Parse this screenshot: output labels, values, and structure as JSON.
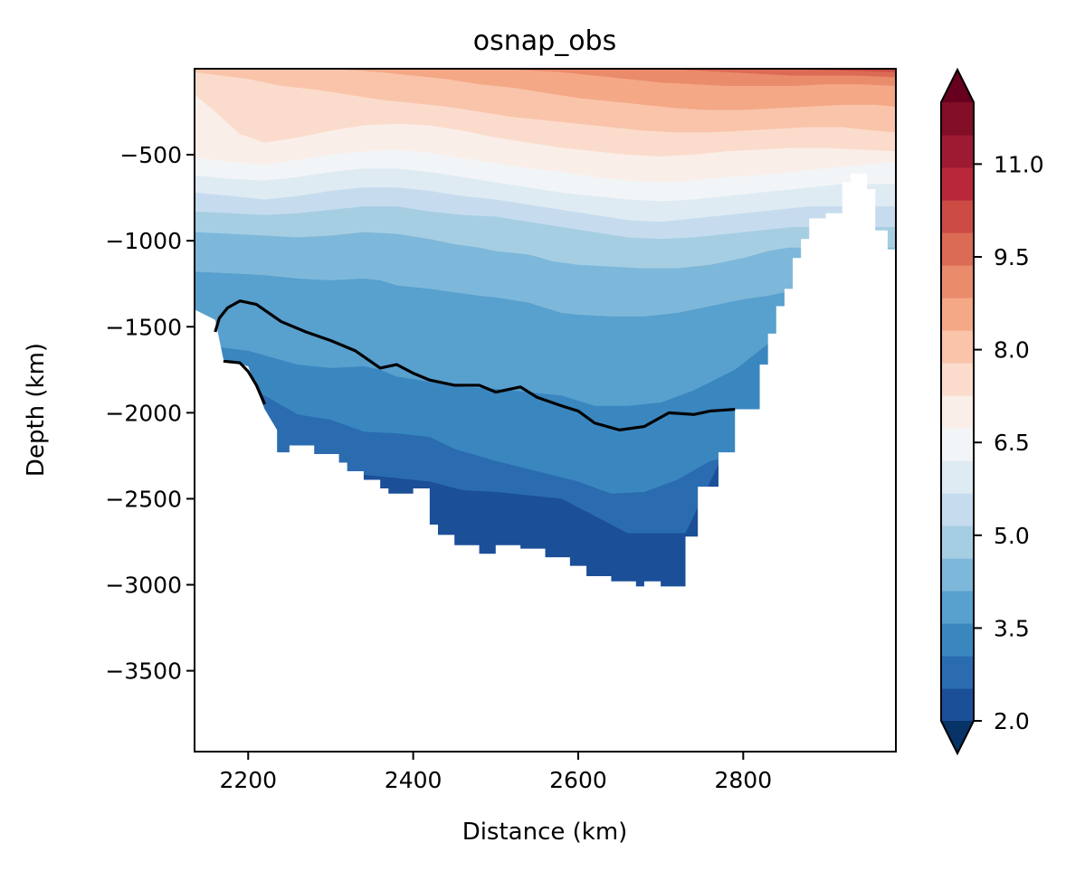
{
  "chart_data": {
    "type": "contourf",
    "title": "osnap_obs",
    "xlabel": "Distance (km)",
    "ylabel": "Depth (km)",
    "xlim": [
      2135,
      2985
    ],
    "ylim": [
      -3970,
      0
    ],
    "xticks": [
      2200,
      2400,
      2600,
      2800
    ],
    "xtick_labels": [
      "2200",
      "2400",
      "2600",
      "2800"
    ],
    "yticks": [
      -500,
      -1000,
      -1500,
      -2000,
      -2500,
      -3000,
      -3500
    ],
    "ytick_labels": [
      "−500",
      "−1000",
      "−1500",
      "−2000",
      "−2500",
      "−3000",
      "−3500"
    ],
    "colorbar": {
      "extend": "both",
      "min": 2.0,
      "max": 12.0,
      "ticks": [
        2.0,
        3.5,
        5.0,
        6.5,
        8.0,
        9.5,
        11.0
      ],
      "tick_labels": [
        "2.0",
        "3.5",
        "5.0",
        "6.5",
        "8.0",
        "9.5",
        "11.0"
      ],
      "colors": [
        "#1b4f98",
        "#2b6cb0",
        "#3a87c0",
        "#58a0ce",
        "#7db8da",
        "#a6cee3",
        "#c6dcee",
        "#dfebf3",
        "#f2f5f7",
        "#faeee9",
        "#fbdccc",
        "#f9c4aa",
        "#f4a886",
        "#ea8b6b",
        "#dc6b55",
        "#cc4b45",
        "#b8283a",
        "#9d1a32",
        "#810d27"
      ],
      "under_color": "#073366",
      "over_color": "#67001f"
    },
    "contour_line": {
      "color": "#000000",
      "points": [
        [
          2160,
          -1530
        ],
        [
          2165,
          -1450
        ],
        [
          2175,
          -1390
        ],
        [
          2190,
          -1350
        ],
        [
          2210,
          -1370
        ],
        [
          2240,
          -1470
        ],
        [
          2270,
          -1530
        ],
        [
          2300,
          -1580
        ],
        [
          2330,
          -1640
        ],
        [
          2360,
          -1740
        ],
        [
          2380,
          -1720
        ],
        [
          2400,
          -1770
        ],
        [
          2420,
          -1810
        ],
        [
          2450,
          -1840
        ],
        [
          2480,
          -1840
        ],
        [
          2500,
          -1880
        ],
        [
          2530,
          -1850
        ],
        [
          2550,
          -1910
        ],
        [
          2580,
          -1960
        ],
        [
          2600,
          -1990
        ],
        [
          2620,
          -2060
        ],
        [
          2650,
          -2100
        ],
        [
          2680,
          -2080
        ],
        [
          2710,
          -2000
        ],
        [
          2740,
          -2010
        ],
        [
          2760,
          -1990
        ],
        [
          2790,
          -1980
        ]
      ],
      "lower_branch": [
        [
          2170,
          -1700
        ],
        [
          2190,
          -1710
        ],
        [
          2200,
          -1760
        ],
        [
          2210,
          -1840
        ],
        [
          2220,
          -1950
        ]
      ]
    },
    "bathymetry_floor": [
      [
        2135,
        -1400
      ],
      [
        2160,
        -1460
      ],
      [
        2170,
        -1690
      ],
      [
        2200,
        -1730
      ],
      [
        2220,
        -1980
      ],
      [
        2235,
        -2100
      ],
      [
        2235,
        -2230
      ],
      [
        2250,
        -2230
      ],
      [
        2250,
        -2190
      ],
      [
        2280,
        -2190
      ],
      [
        2280,
        -2240
      ],
      [
        2310,
        -2240
      ],
      [
        2310,
        -2290
      ],
      [
        2320,
        -2290
      ],
      [
        2320,
        -2340
      ],
      [
        2340,
        -2340
      ],
      [
        2340,
        -2390
      ],
      [
        2360,
        -2390
      ],
      [
        2360,
        -2440
      ],
      [
        2370,
        -2440
      ],
      [
        2370,
        -2470
      ],
      [
        2400,
        -2470
      ],
      [
        2400,
        -2440
      ],
      [
        2420,
        -2440
      ],
      [
        2420,
        -2650
      ],
      [
        2430,
        -2650
      ],
      [
        2430,
        -2710
      ],
      [
        2450,
        -2710
      ],
      [
        2450,
        -2770
      ],
      [
        2480,
        -2770
      ],
      [
        2480,
        -2820
      ],
      [
        2500,
        -2820
      ],
      [
        2500,
        -2770
      ],
      [
        2530,
        -2770
      ],
      [
        2530,
        -2790
      ],
      [
        2560,
        -2790
      ],
      [
        2560,
        -2840
      ],
      [
        2590,
        -2840
      ],
      [
        2590,
        -2890
      ],
      [
        2610,
        -2890
      ],
      [
        2610,
        -2950
      ],
      [
        2640,
        -2950
      ],
      [
        2640,
        -2980
      ],
      [
        2670,
        -2980
      ],
      [
        2670,
        -3010
      ],
      [
        2680,
        -3010
      ],
      [
        2680,
        -2980
      ],
      [
        2700,
        -2980
      ],
      [
        2700,
        -3010
      ],
      [
        2730,
        -3010
      ],
      [
        2730,
        -2720
      ],
      [
        2745,
        -2720
      ],
      [
        2745,
        -2430
      ],
      [
        2770,
        -2430
      ],
      [
        2770,
        -2230
      ],
      [
        2790,
        -2230
      ],
      [
        2790,
        -1980
      ],
      [
        2820,
        -1980
      ],
      [
        2820,
        -1720
      ],
      [
        2830,
        -1720
      ],
      [
        2830,
        -1540
      ],
      [
        2840,
        -1540
      ],
      [
        2840,
        -1380
      ],
      [
        2850,
        -1380
      ],
      [
        2850,
        -1280
      ],
      [
        2860,
        -1280
      ],
      [
        2860,
        -1100
      ],
      [
        2870,
        -1100
      ],
      [
        2870,
        -990
      ],
      [
        2880,
        -990
      ],
      [
        2880,
        -870
      ],
      [
        2900,
        -870
      ],
      [
        2900,
        -840
      ],
      [
        2920,
        -840
      ],
      [
        2920,
        -660
      ],
      [
        2930,
        -660
      ],
      [
        2930,
        -610
      ],
      [
        2950,
        -610
      ],
      [
        2950,
        -700
      ],
      [
        2960,
        -700
      ],
      [
        2960,
        -940
      ],
      [
        2975,
        -940
      ],
      [
        2975,
        -1050
      ],
      [
        2985,
        -1050
      ]
    ],
    "band_lower_edges": [
      {
        "xs": [
          2135,
          2160,
          2200,
          2270,
          2300,
          2340,
          2380,
          2420,
          2460,
          2500,
          2540,
          2580,
          2620,
          2660,
          2700,
          2730,
          2750,
          2770,
          2790
        ],
        "ys": [
          -2200,
          -2250,
          -2280,
          -2300,
          -2350,
          -2360,
          -2380,
          -2400,
          -2450,
          -2460,
          -2480,
          -2500,
          -2600,
          -2700,
          -2700,
          -2700,
          -2500,
          -2300,
          -2200
        ]
      },
      {
        "xs": [
          2135,
          2220,
          2260,
          2300,
          2340,
          2380,
          2420,
          2450,
          2500,
          2550,
          2600,
          2640,
          2680,
          2720,
          2760,
          2790
        ],
        "ys": [
          -1800,
          -1900,
          -2010,
          -2040,
          -2110,
          -2120,
          -2140,
          -2210,
          -2280,
          -2340,
          -2400,
          -2470,
          -2460,
          -2390,
          -2280,
          -2250
        ]
      },
      {
        "xs": [
          2135,
          2200,
          2260,
          2300,
          2340,
          2360,
          2380,
          2420,
          2460,
          2500,
          2540,
          2580,
          2620,
          2660,
          2700,
          2740,
          2790,
          2830
        ],
        "ys": [
          -1600,
          -1640,
          -1720,
          -1740,
          -1730,
          -1750,
          -1790,
          -1820,
          -1850,
          -1860,
          -1880,
          -1900,
          -1960,
          -1960,
          -1940,
          -1870,
          -1750,
          -1600
        ]
      },
      {
        "xs": [
          2135,
          2180,
          2220,
          2260,
          2300,
          2340,
          2360,
          2380,
          2420,
          2450,
          2480,
          2500,
          2540,
          2560,
          2580,
          2600,
          2640,
          2680,
          2720,
          2760,
          2800,
          2830,
          2850
        ],
        "ys": [
          -1180,
          -1190,
          -1200,
          -1220,
          -1230,
          -1220,
          -1230,
          -1260,
          -1280,
          -1300,
          -1320,
          -1330,
          -1360,
          -1390,
          -1420,
          -1430,
          -1440,
          -1440,
          -1420,
          -1380,
          -1340,
          -1320,
          -1300
        ]
      },
      {
        "xs": [
          2135,
          2180,
          2220,
          2260,
          2300,
          2340,
          2380,
          2420,
          2450,
          2480,
          2500,
          2540,
          2570,
          2600,
          2640,
          2680,
          2720,
          2760,
          2800,
          2830,
          2855
        ],
        "ys": [
          -950,
          -960,
          -970,
          -980,
          -970,
          -950,
          -960,
          -990,
          -1020,
          -1040,
          -1060,
          -1080,
          -1120,
          -1140,
          -1150,
          -1160,
          -1160,
          -1140,
          -1100,
          -1060,
          -1040
        ]
      },
      {
        "xs": [
          2135,
          2180,
          2220,
          2260,
          2300,
          2340,
          2380,
          2420,
          2460,
          2500,
          2540,
          2580,
          2620,
          2660,
          2700,
          2740,
          2780,
          2820,
          2860
        ],
        "ys": [
          -830,
          -840,
          -850,
          -840,
          -820,
          -800,
          -800,
          -830,
          -850,
          -860,
          -890,
          -920,
          -950,
          -980,
          -990,
          -980,
          -960,
          -940,
          -920
        ]
      },
      {
        "xs": [
          2135,
          2180,
          2220,
          2260,
          2300,
          2340,
          2380,
          2420,
          2460,
          2500,
          2540,
          2580,
          2620,
          2660,
          2700,
          2740,
          2780,
          2820,
          2860,
          2880
        ],
        "ys": [
          -720,
          -740,
          -760,
          -740,
          -710,
          -690,
          -690,
          -710,
          -740,
          -760,
          -790,
          -820,
          -850,
          -880,
          -890,
          -870,
          -850,
          -830,
          -810,
          -800
        ]
      },
      {
        "xs": [
          2135,
          2180,
          2220,
          2260,
          2300,
          2340,
          2380,
          2420,
          2460,
          2500,
          2540,
          2580,
          2620,
          2660,
          2700,
          2740,
          2780,
          2820,
          2860,
          2900,
          2920
        ],
        "ys": [
          -620,
          -640,
          -650,
          -630,
          -600,
          -580,
          -580,
          -600,
          -630,
          -660,
          -690,
          -720,
          -740,
          -760,
          -770,
          -760,
          -740,
          -720,
          -700,
          -680,
          -670
        ]
      },
      {
        "xs": [
          2135,
          2180,
          2220,
          2260,
          2300,
          2340,
          2380,
          2420,
          2460,
          2500,
          2540,
          2580,
          2620,
          2660,
          2700,
          2740,
          2780,
          2820,
          2860,
          2900,
          2940,
          2970,
          2985
        ],
        "ys": [
          -520,
          -540,
          -560,
          -530,
          -500,
          -480,
          -470,
          -490,
          -520,
          -550,
          -580,
          -600,
          -630,
          -650,
          -660,
          -650,
          -630,
          -620,
          -600,
          -580,
          -560,
          -550,
          -540
        ]
      },
      {
        "xs": [
          2135,
          2160,
          2190,
          2220,
          2260,
          2300,
          2340,
          2380,
          2420,
          2460,
          2500,
          2540,
          2580,
          2620,
          2660,
          2700,
          2740,
          2780,
          2820,
          2860,
          2900,
          2940,
          2985
        ],
        "ys": [
          -150,
          -250,
          -380,
          -430,
          -400,
          -360,
          -330,
          -320,
          -330,
          -360,
          -400,
          -430,
          -460,
          -480,
          -500,
          -510,
          -500,
          -480,
          -470,
          -460,
          -460,
          -470,
          -480
        ]
      },
      {
        "xs": [
          2135,
          2200,
          2240,
          2280,
          2320,
          2360,
          2400,
          2440,
          2480,
          2520,
          2560,
          2600,
          2640,
          2680,
          2720,
          2760,
          2800,
          2840,
          2880,
          2920,
          2960,
          2985
        ],
        "ys": [
          -20,
          -60,
          -100,
          -120,
          -150,
          -180,
          -200,
          -220,
          -250,
          -280,
          -300,
          -320,
          -340,
          -360,
          -370,
          -370,
          -360,
          -350,
          -340,
          -340,
          -360,
          -370
        ]
      },
      {
        "xs": [
          2135,
          2300,
          2360,
          2400,
          2440,
          2480,
          2520,
          2560,
          2600,
          2640,
          2680,
          2720,
          2760,
          2800,
          2840,
          2880,
          2920,
          2960,
          2985
        ],
        "ys": [
          0,
          0,
          -20,
          -40,
          -60,
          -90,
          -110,
          -140,
          -170,
          -190,
          -210,
          -230,
          -240,
          -240,
          -230,
          -220,
          -210,
          -210,
          -220
        ]
      },
      {
        "xs": [
          2135,
          2500,
          2540,
          2580,
          2620,
          2660,
          2700,
          2740,
          2780,
          2820,
          2860,
          2900,
          2940,
          2985
        ],
        "ys": [
          0,
          0,
          -10,
          -20,
          -40,
          -60,
          -80,
          -90,
          -100,
          -100,
          -100,
          -90,
          -90,
          -100
        ]
      },
      {
        "xs": [
          2135,
          2700,
          2740,
          2780,
          2820,
          2860,
          2900,
          2940,
          2985
        ],
        "ys": [
          0,
          0,
          -10,
          -20,
          -30,
          -40,
          -40,
          -40,
          -50
        ]
      },
      {
        "xs": [
          2135,
          2840,
          2880,
          2920,
          2960,
          2985
        ],
        "ys": [
          0,
          0,
          -5,
          -10,
          -15,
          -20
        ]
      }
    ],
    "band_fills": [
      "#2b6cb0",
      "#3a87c0",
      "#58a0ce",
      "#7db8da",
      "#a6cee3",
      "#c6dcee",
      "#dfebf3",
      "#f2f5f7",
      "#faeee9",
      "#fbdccc",
      "#f9c4aa",
      "#f4a886",
      "#ea8b6b",
      "#dc6b55",
      "#cc4b45"
    ],
    "deep_fill": "#1b4f98"
  }
}
